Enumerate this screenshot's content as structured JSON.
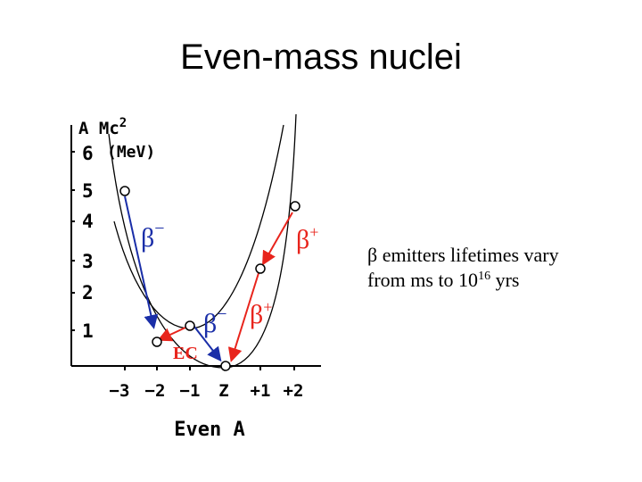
{
  "title": "Even-mass nuclei",
  "note": {
    "line1": "β emitters lifetimes vary",
    "line2_prefix": "from ms to 10",
    "line2_exp": "16",
    "line2_suffix": " yrs"
  },
  "diagram": {
    "y_axis_label": "A Mc",
    "y_axis_label_exp": "2",
    "y_axis_unit": "(MeV)",
    "y_ticks": [
      "6",
      "5",
      "4",
      "3",
      "2",
      "1"
    ],
    "x_ticks": [
      "−3",
      "−2",
      "−1",
      "Z",
      "+1",
      "+2"
    ],
    "x_axis_label": "Even A",
    "labels": {
      "beta_minus_1": "β",
      "beta_minus_1_sup": "−",
      "beta_minus_2": "β",
      "beta_minus_2_sup": "−",
      "beta_plus_1": "β",
      "beta_plus_1_sup": "+",
      "beta_plus_2": "β",
      "beta_plus_2_sup": "+",
      "ec": "EC"
    },
    "colors": {
      "beta_minus": "#1a2ea8",
      "beta_plus": "#e8241c",
      "axis": "#000000"
    }
  }
}
